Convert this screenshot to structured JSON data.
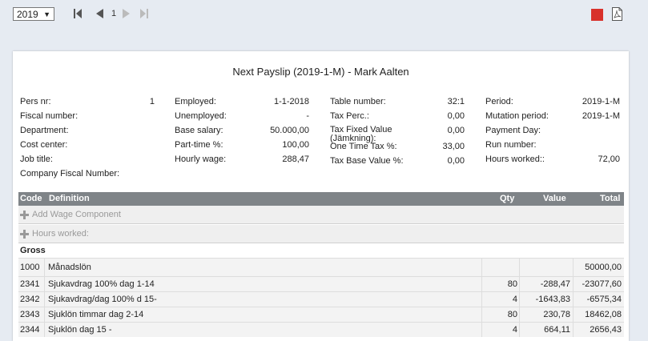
{
  "toolbar": {
    "year": "2019",
    "page": "1"
  },
  "payslip": {
    "title": "Next Payslip (2019-1-M) - Mark Aalten",
    "col1": [
      {
        "label": "Pers nr:",
        "value": "1"
      },
      {
        "label": "Fiscal number:",
        "value": ""
      },
      {
        "label": "Department:",
        "value": ""
      },
      {
        "label": "Cost center:",
        "value": ""
      },
      {
        "label": "Job title:",
        "value": ""
      },
      {
        "label": "Company Fiscal Number:",
        "value": ""
      }
    ],
    "col2": [
      {
        "label": "Employed:",
        "value": "1-1-2018"
      },
      {
        "label": "Unemployed:",
        "value": "-"
      },
      {
        "label": "Base salary:",
        "value": "50.000,00"
      },
      {
        "label": "Part-time %:",
        "value": "100,00"
      },
      {
        "label": "Hourly wage:",
        "value": "288,47"
      }
    ],
    "col3": [
      {
        "label": "Table number:",
        "value": "32:1"
      },
      {
        "label": "Tax Perc.:",
        "value": "0,00"
      },
      {
        "label": "Tax Fixed Value (Jämkning):",
        "value": "0,00"
      },
      {
        "label": "One Time Tax %:",
        "value": "33,00"
      },
      {
        "label": "Tax Base Value %:",
        "value": "0,00"
      }
    ],
    "col4": [
      {
        "label": "Period:",
        "value": "2019-1-M"
      },
      {
        "label": "Mutation period:",
        "value": "2019-1-M"
      },
      {
        "label": "Payment Day:",
        "value": ""
      },
      {
        "label": "Run number:",
        "value": ""
      },
      {
        "label": "Hours worked::",
        "value": "72,00"
      }
    ]
  },
  "table": {
    "headers": {
      "code": "Code",
      "definition": "Definition",
      "qty": "Qty",
      "value": "Value",
      "total": "Total"
    },
    "add_wage": "Add Wage Component",
    "hours_worked": "Hours worked:",
    "group": "Gross",
    "rows": [
      {
        "code": "1000",
        "definition": "Månadslön",
        "qty": "",
        "value": "",
        "total": "50000,00"
      },
      {
        "code": "2341",
        "definition": "Sjukavdrag 100% dag 1-14",
        "qty": "80",
        "value": "-288,47",
        "total": "-23077,60"
      },
      {
        "code": "2342",
        "definition": "Sjukavdrag/dag 100% d 15-",
        "qty": "4",
        "value": "-1643,83",
        "total": "-6575,34"
      },
      {
        "code": "2343",
        "definition": "Sjuklön timmar dag 2-14",
        "qty": "80",
        "value": "230,78",
        "total": "18462,08"
      },
      {
        "code": "2344",
        "definition": "Sjuklön dag 15 -",
        "qty": "4",
        "value": "664,11",
        "total": "2656,43"
      }
    ]
  }
}
